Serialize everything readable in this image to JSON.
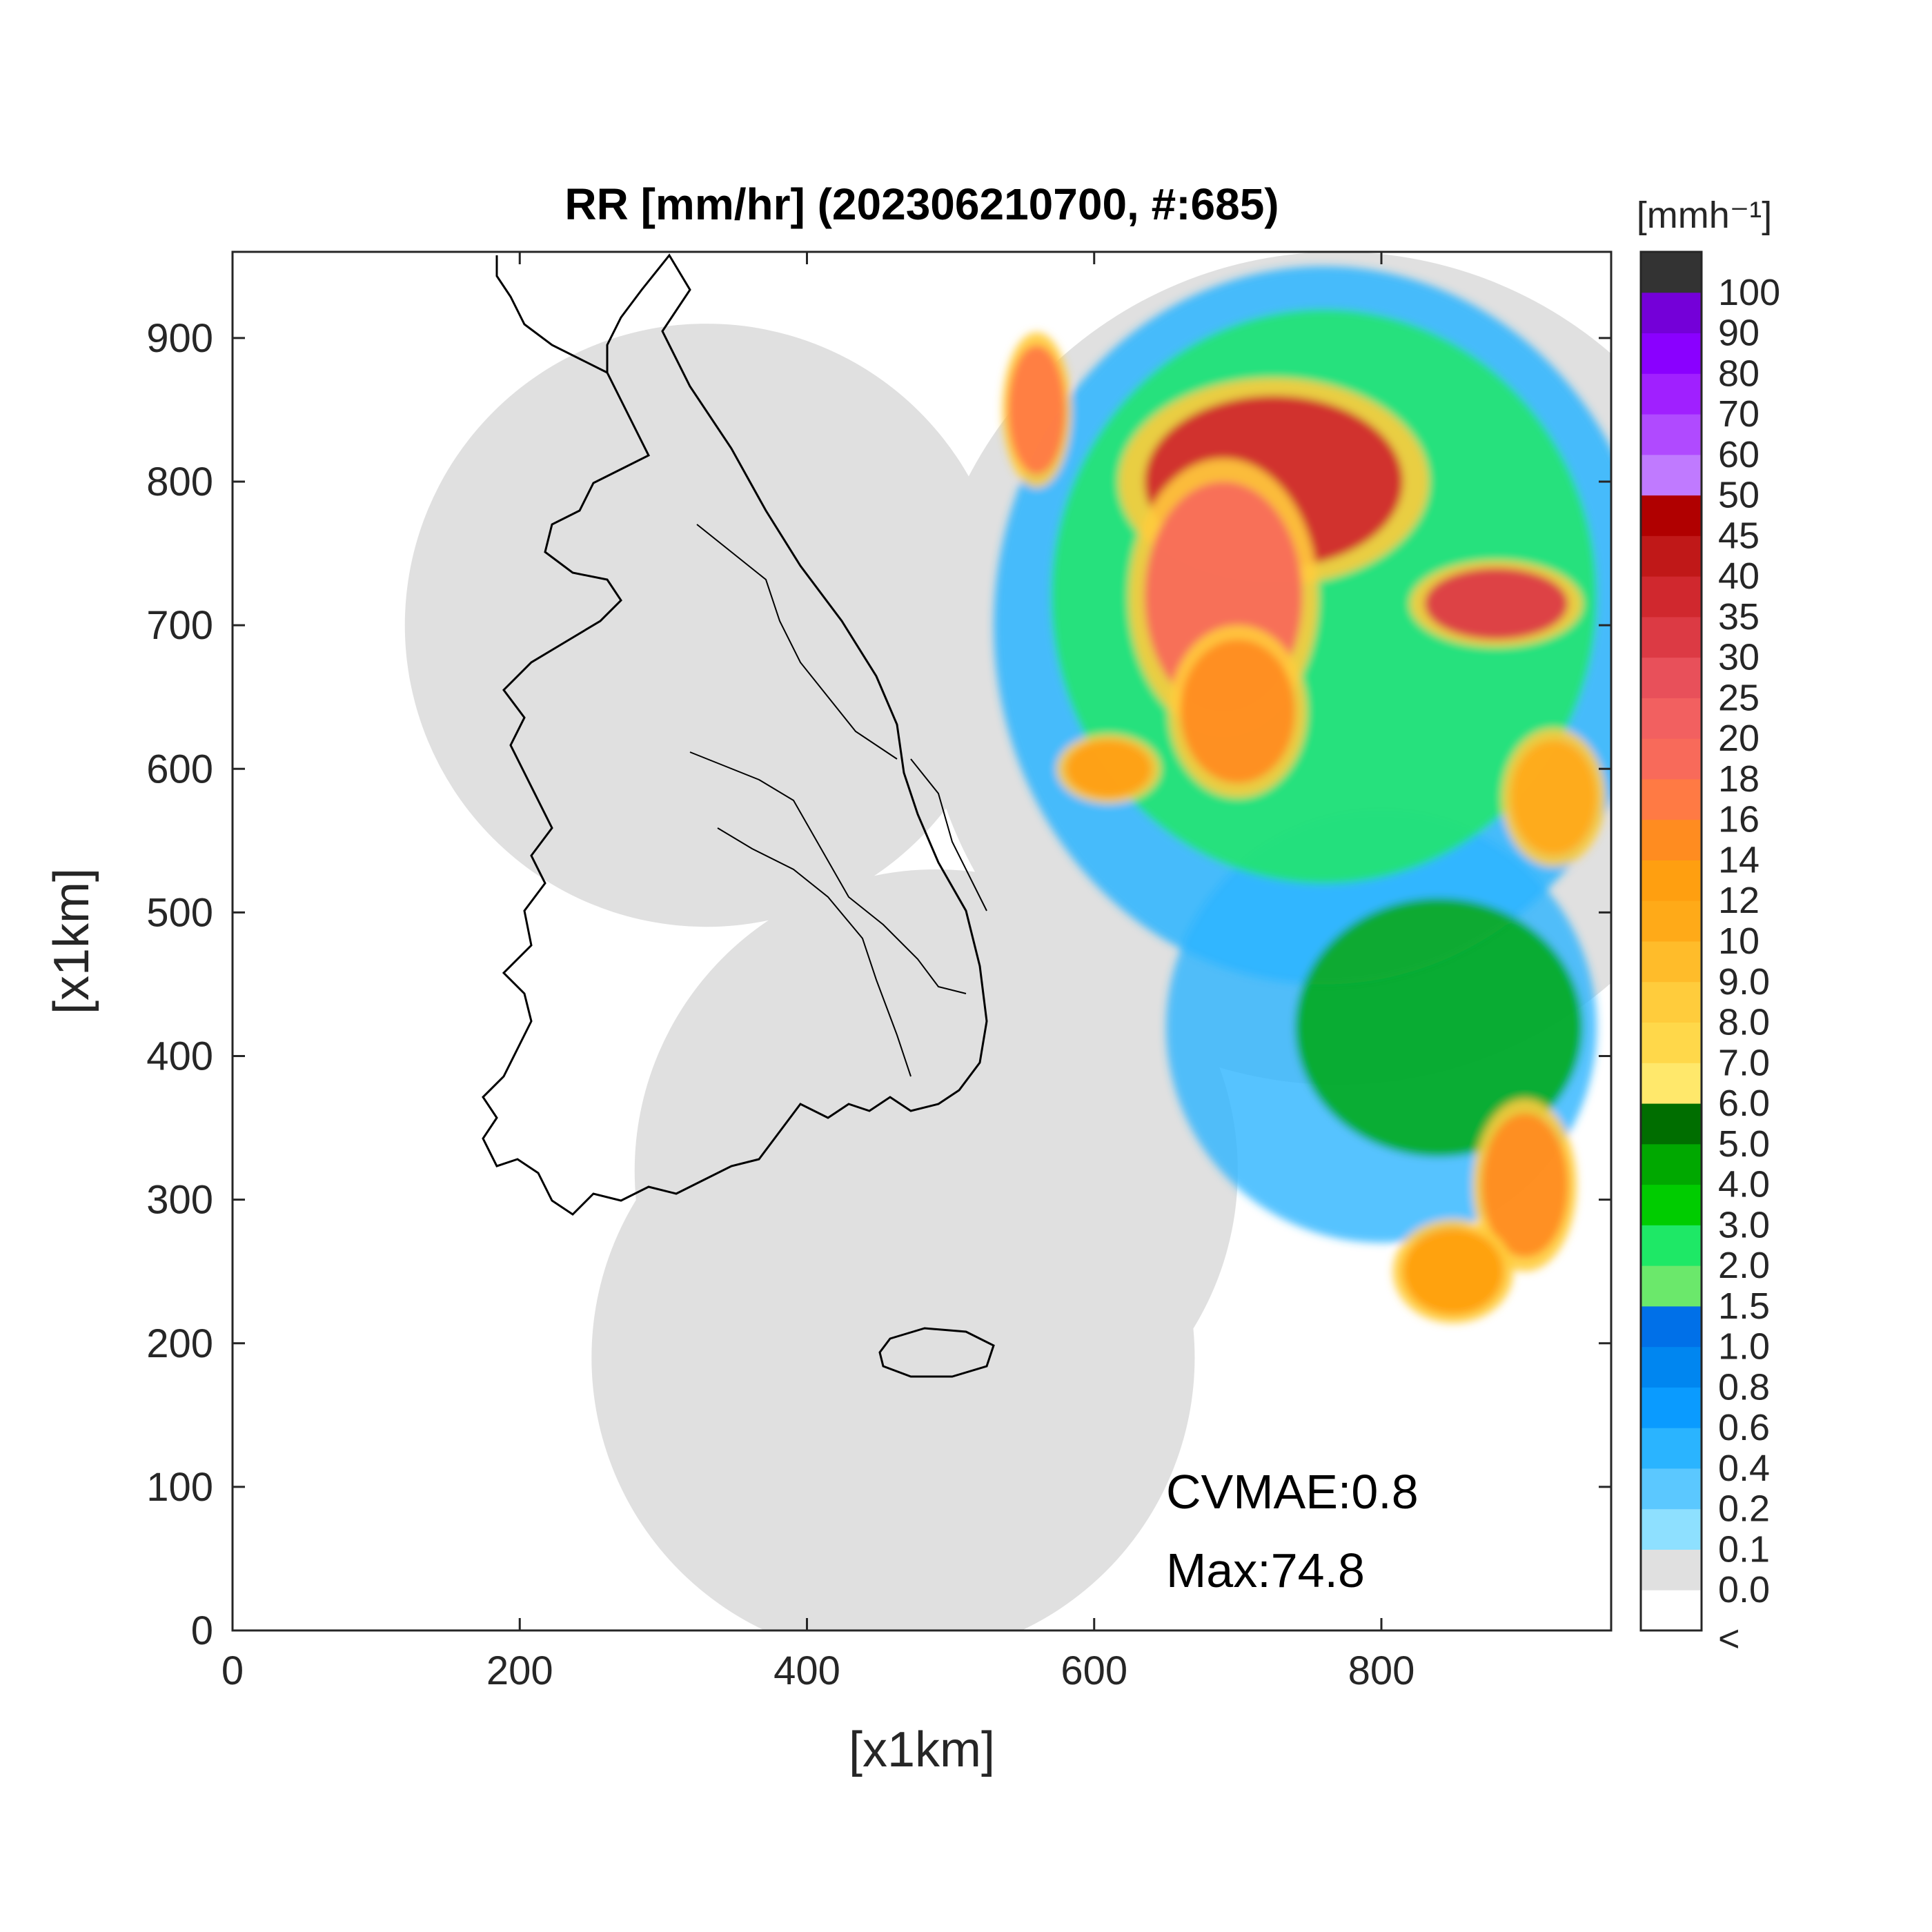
{
  "chart_data": {
    "type": "heatmap",
    "title": "RR [mm/hr] (202306210700, #:685)",
    "xlabel": "[x1km]",
    "ylabel": "[x1km]",
    "xlim": [
      0,
      960
    ],
    "ylim": [
      0,
      960
    ],
    "xticks": [
      "0",
      "200",
      "400",
      "600",
      "800"
    ],
    "xtick_values": [
      0,
      200,
      400,
      600,
      800
    ],
    "yticks": [
      "0",
      "100",
      "200",
      "300",
      "400",
      "500",
      "600",
      "700",
      "800",
      "900"
    ],
    "ytick_values": [
      0,
      100,
      200,
      300,
      400,
      500,
      600,
      700,
      800,
      900
    ],
    "grid": false,
    "colorbar": {
      "label": "[mmh⁻¹]",
      "labels": [
        "<",
        "0.0",
        "0.1",
        "0.2",
        "0.4",
        "0.6",
        "0.8",
        "1.0",
        "1.5",
        "2.0",
        "3.0",
        "4.0",
        "5.0",
        "6.0",
        "7.0",
        "8.0",
        "9.0",
        "10",
        "12",
        "14",
        "16",
        "18",
        "20",
        "25",
        "30",
        "35",
        "40",
        "45",
        "50",
        "60",
        "70",
        "80",
        "90",
        "100"
      ],
      "colors": [
        "#ffffff",
        "#e0e0e0",
        "#8ee0ff",
        "#5bc8ff",
        "#2ab4ff",
        "#0a9bff",
        "#0086f0",
        "#0070e8",
        "#6be86b",
        "#1ee866",
        "#00cc00",
        "#00a800",
        "#006e00",
        "#ffe86b",
        "#ffd84a",
        "#ffcc3c",
        "#ffbc2a",
        "#ffaa18",
        "#ff9f10",
        "#ff8c20",
        "#ff7a44",
        "#f86a5a",
        "#f26060",
        "#e8505a",
        "#dc3a44",
        "#d0282e",
        "#c01818",
        "#b00000",
        "#c07aff",
        "#b04aff",
        "#a020ff",
        "#8a00ff",
        "#7400d8",
        "#333333"
      ]
    },
    "annotations": [
      {
        "label": "CVMAE",
        "text": "CVMAE:0.8",
        "value": 0.8
      },
      {
        "label": "Max",
        "text": "Max:74.8",
        "value": 74.8
      }
    ],
    "coverage_domain_centers_km": [
      {
        "x": 330,
        "y": 700,
        "r": 210
      },
      {
        "x": 490,
        "y": 320,
        "r": 210
      },
      {
        "x": 460,
        "y": 190,
        "r": 210
      },
      {
        "x": 770,
        "y": 670,
        "r": 290
      },
      {
        "x": 960,
        "y": 640,
        "r": 160
      }
    ],
    "rain_cells_km": [
      {
        "x": 725,
        "y": 800,
        "rx": 90,
        "ry": 60,
        "level": 35
      },
      {
        "x": 690,
        "y": 720,
        "rx": 55,
        "ry": 80,
        "level": 18
      },
      {
        "x": 700,
        "y": 640,
        "rx": 40,
        "ry": 50,
        "level": 14
      },
      {
        "x": 880,
        "y": 715,
        "rx": 50,
        "ry": 25,
        "level": 30
      },
      {
        "x": 560,
        "y": 850,
        "rx": 20,
        "ry": 45,
        "level": 16
      },
      {
        "x": 610,
        "y": 600,
        "rx": 30,
        "ry": 20,
        "level": 12
      },
      {
        "x": 900,
        "y": 310,
        "rx": 30,
        "ry": 50,
        "level": 14
      },
      {
        "x": 850,
        "y": 250,
        "rx": 35,
        "ry": 30,
        "level": 12
      },
      {
        "x": 920,
        "y": 580,
        "rx": 30,
        "ry": 40,
        "level": 10
      }
    ]
  }
}
